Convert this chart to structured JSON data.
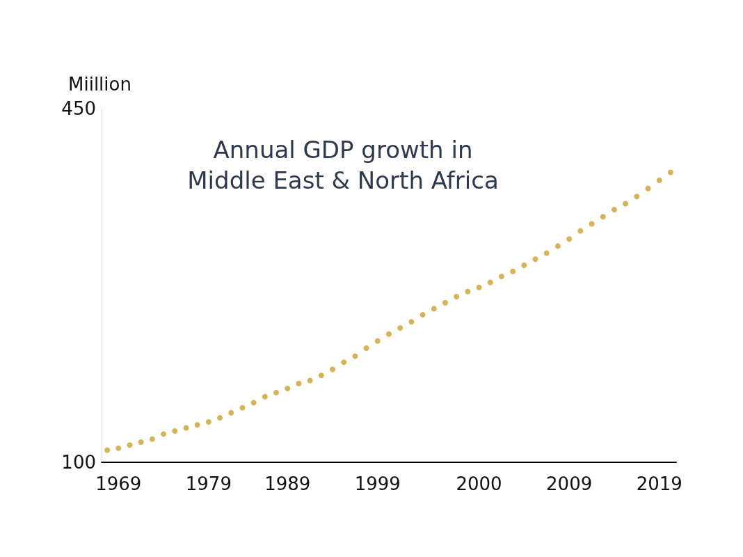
{
  "chart_data": {
    "type": "scatter",
    "title": "Annual GDP growth in\nMiddle East & North Africa",
    "ylabel": "Miillion",
    "categories": [
      null,
      "1969",
      null,
      null,
      null,
      null,
      null,
      null,
      null,
      "1979",
      null,
      null,
      null,
      null,
      null,
      null,
      "1989",
      null,
      null,
      null,
      null,
      null,
      null,
      null,
      "1999",
      null,
      null,
      null,
      null,
      null,
      null,
      null,
      null,
      "2000",
      null,
      null,
      null,
      null,
      null,
      null,
      null,
      "2009",
      null,
      null,
      null,
      null,
      null,
      null,
      null,
      "2019",
      null
    ],
    "series": [
      {
        "color": "#c9a030",
        "values": [
          112,
          114,
          117,
          120,
          123,
          128,
          131,
          134,
          137,
          140,
          144,
          149,
          154,
          159,
          165,
          169,
          173,
          178,
          181,
          186,
          192,
          199,
          205,
          213,
          220,
          227,
          233,
          239,
          246,
          252,
          258,
          264,
          269,
          273,
          278,
          284,
          289,
          295,
          301,
          307,
          314,
          321,
          329,
          336,
          343,
          350,
          356,
          363,
          371,
          379,
          387
        ]
      }
    ],
    "ylim": [
      100,
      450
    ],
    "yticks": [
      100,
      450
    ],
    "grid": false,
    "marker": "circle"
  }
}
